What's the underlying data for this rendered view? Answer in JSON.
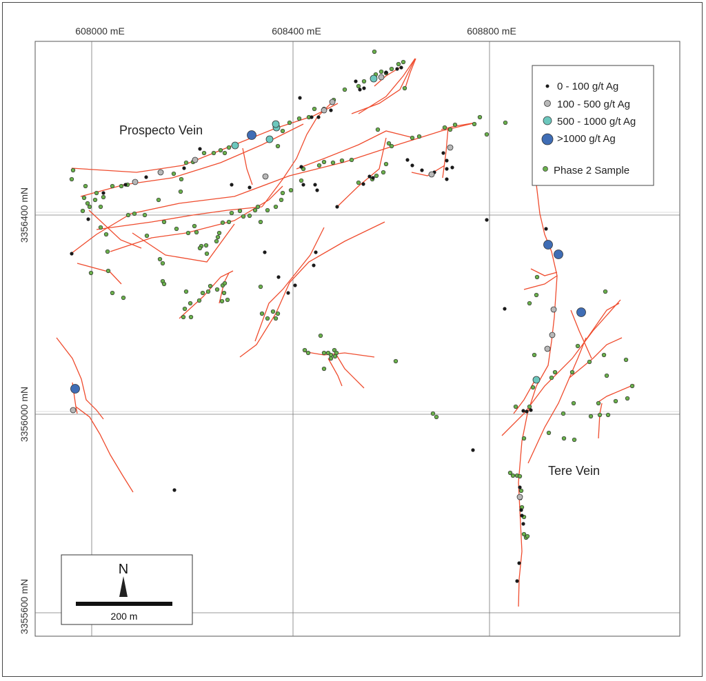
{
  "map": {
    "easting_labels": [
      "608000 mE",
      "608400 mE",
      "608800 mE"
    ],
    "northing_labels": [
      "3356400 mN",
      "3356000 mN",
      "3355600 mN"
    ],
    "northing_label_display": [
      "3356400 mN",
      "3356000 mN",
      "3355600 mN"
    ],
    "vein_labels": [
      "Prospecto Vein",
      "Tere Vein"
    ],
    "legend": {
      "items": [
        {
          "label": "0 - 100 g/t Ag",
          "symbol": "black-dot",
          "color": "#1a1a1a"
        },
        {
          "label": "100 - 500 g/t Ag",
          "symbol": "grey-circle",
          "color": "#b8b8b8"
        },
        {
          "label": "500 - 1000 g/t Ag",
          "symbol": "teal-circle",
          "color": "#6cc7bd"
        },
        {
          "label": ">1000 g/t Ag",
          "symbol": "blue-circle",
          "color": "#3f6db5"
        },
        {
          "label": "Phase 2 Sample",
          "symbol": "green-dot",
          "color": "#6ab04c"
        }
      ]
    },
    "scale_bar": {
      "label": "200 m"
    },
    "north_arrow": {
      "label": "N"
    },
    "colors": {
      "vein": "#ef4b2d",
      "grid": "#666666",
      "frame": "#444444"
    }
  }
}
